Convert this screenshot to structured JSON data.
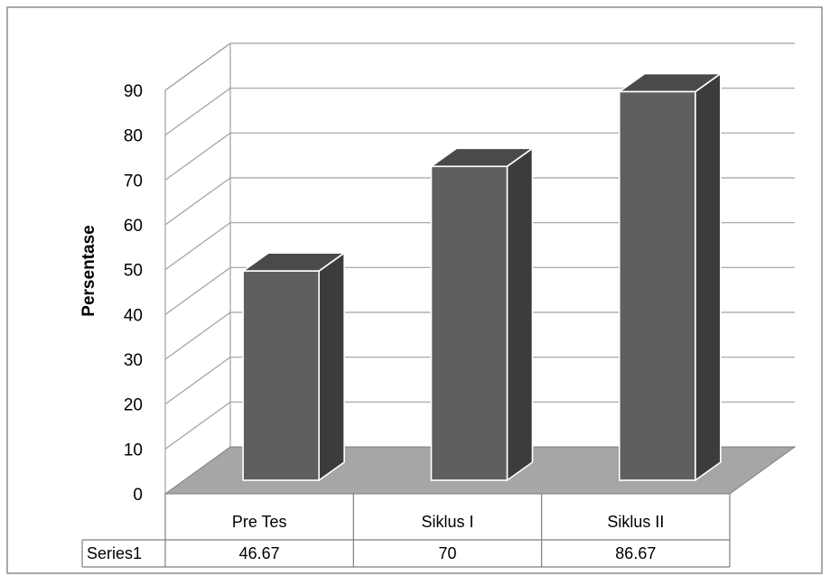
{
  "chart_data": {
    "type": "bar",
    "title": "",
    "xlabel": "",
    "ylabel": "Persentase",
    "ylim": [
      0,
      90
    ],
    "yticks": [
      0,
      10,
      20,
      30,
      40,
      50,
      60,
      70,
      80,
      90
    ],
    "categories": [
      "Pre Tes",
      "Siklus I",
      "Siklus II"
    ],
    "series": [
      {
        "name": "Series1",
        "values": [
          46.67,
          70,
          86.67
        ],
        "labels": [
          "46.67",
          "70",
          "86.67"
        ]
      }
    ],
    "grid": true,
    "legend": "data-table",
    "style": "3d-column",
    "colors": {
      "bar_front": "#5f5f5f",
      "bar_top": "#4a4a4a",
      "bar_side": "#3c3c3c",
      "floor": "#a6a6a6",
      "grid": "#a0a0a0"
    }
  }
}
